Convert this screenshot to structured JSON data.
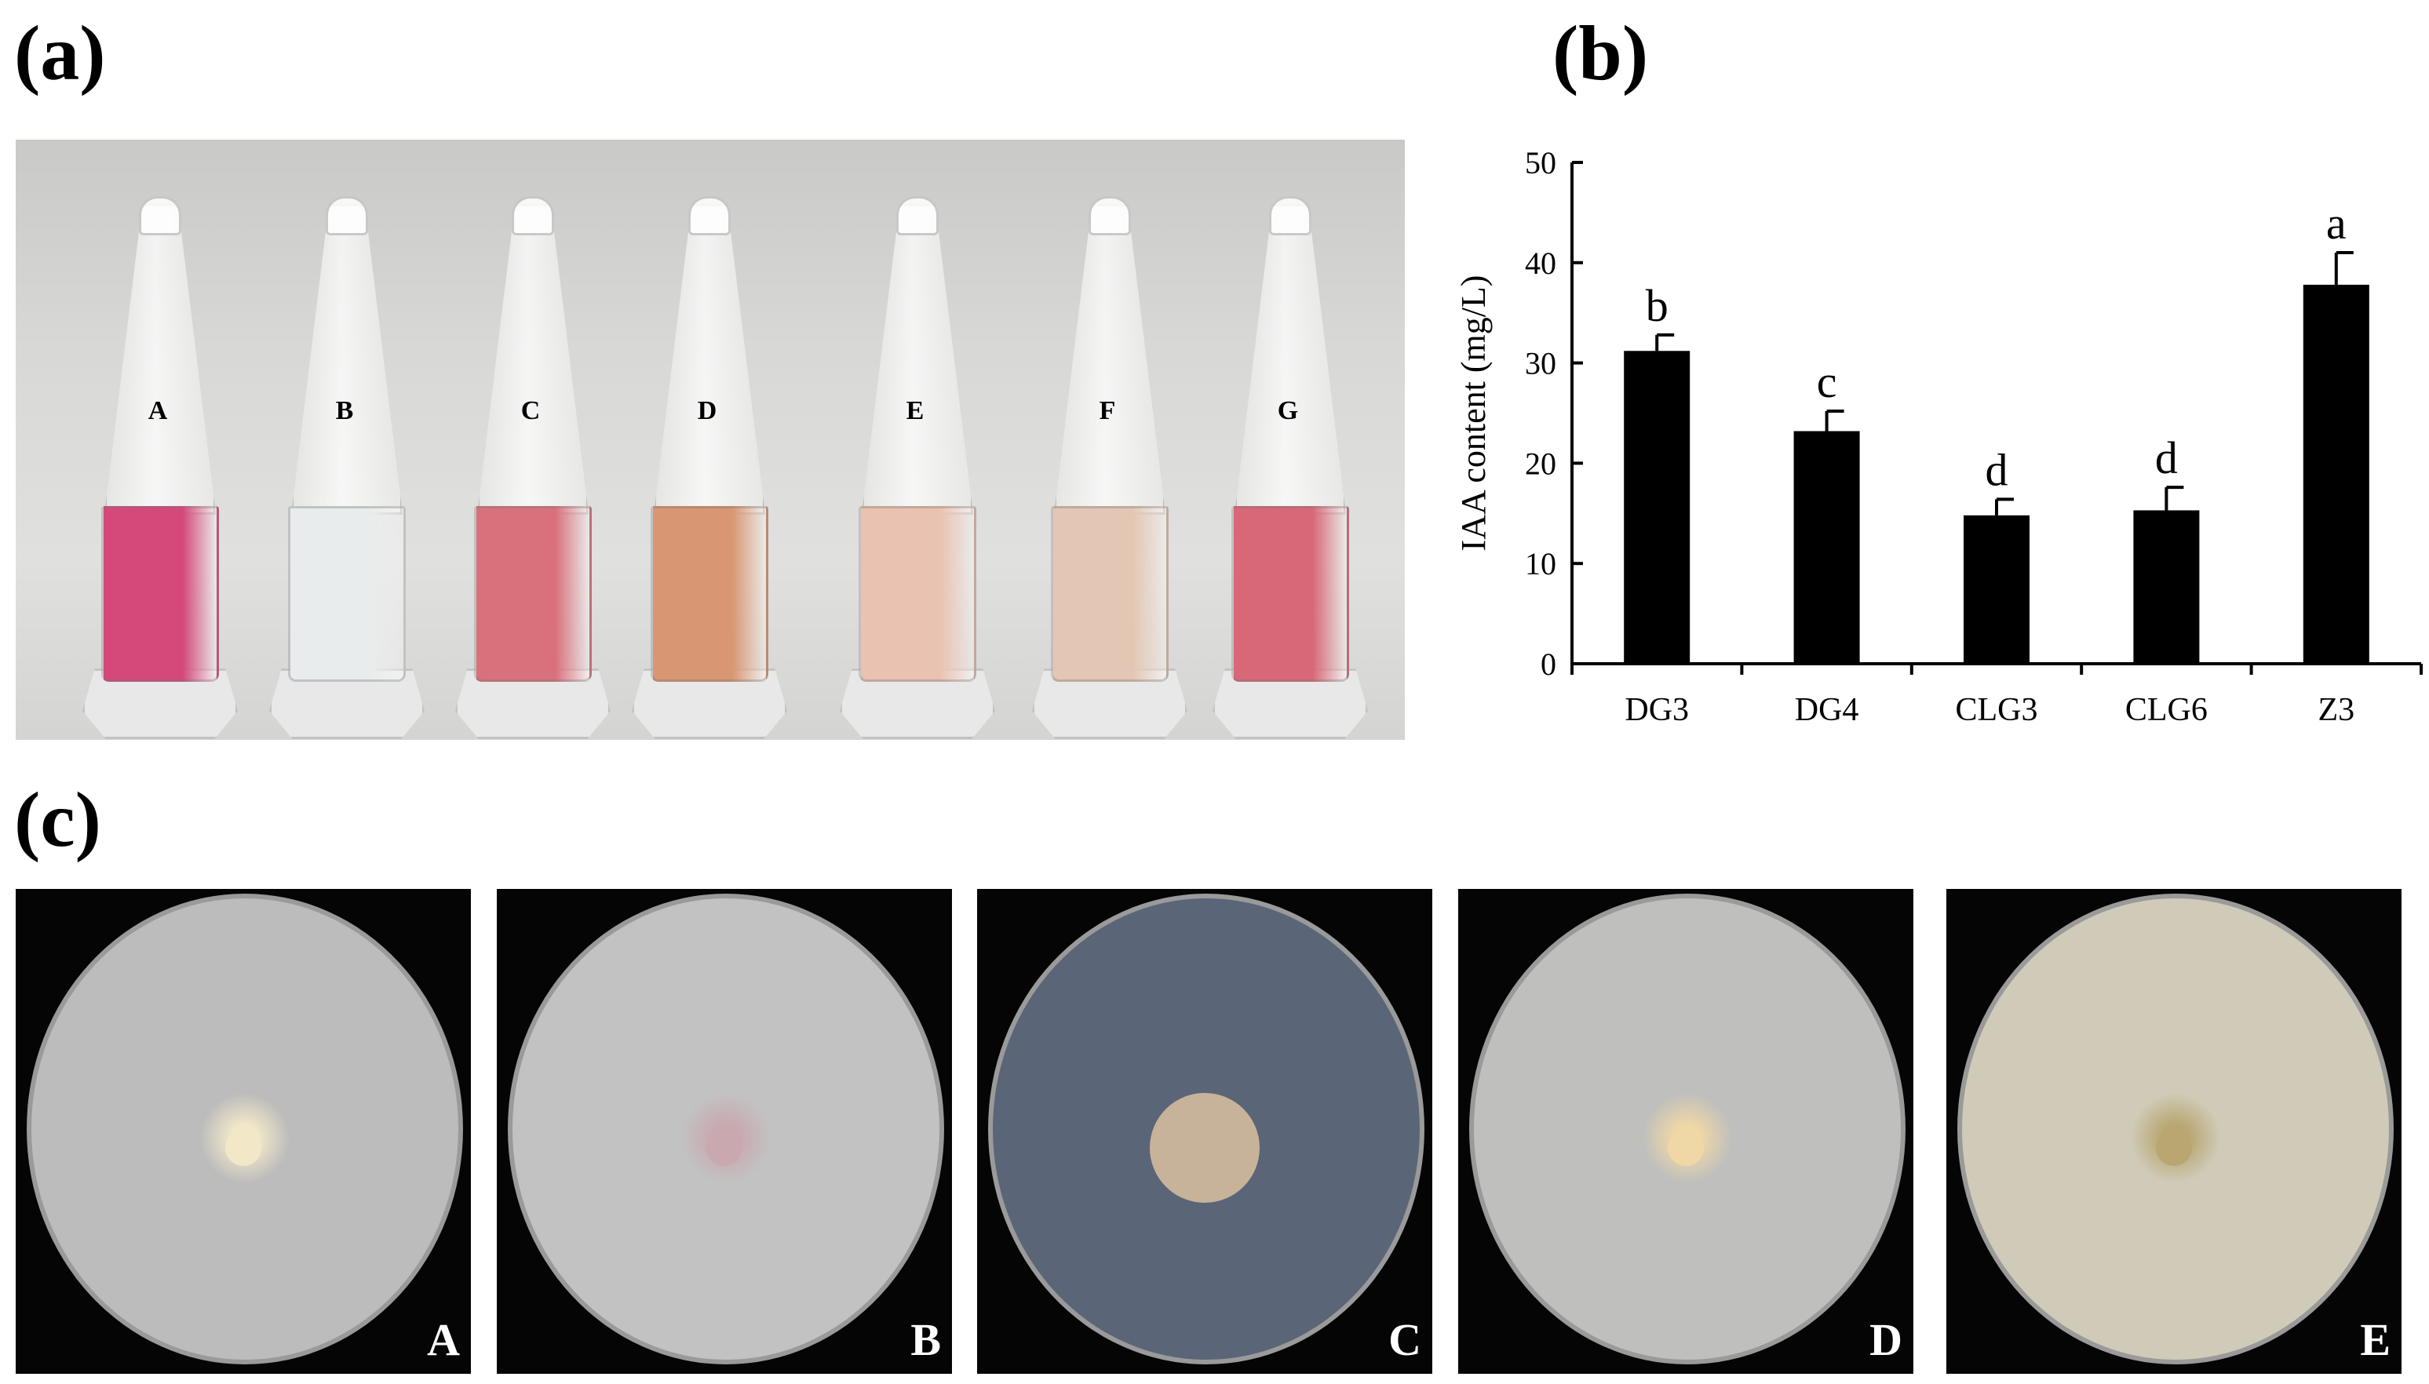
{
  "panels": {
    "a": "(a)",
    "b": "(b)",
    "c": "(c)"
  },
  "tubes": [
    {
      "label": "A",
      "color": "#d4487a"
    },
    {
      "label": "B",
      "color": "#e9ecec"
    },
    {
      "label": "C",
      "color": "#d9717c"
    },
    {
      "label": "D",
      "color": "#d89672"
    },
    {
      "label": "E",
      "color": "#e9c2b2"
    },
    {
      "label": "F",
      "color": "#e3c6b3"
    },
    {
      "label": "G",
      "color": "#d86878"
    }
  ],
  "chart_data": {
    "type": "bar",
    "categories": [
      "DG3",
      "DG4",
      "CLG3",
      "CLG6",
      "Z3"
    ],
    "values": [
      31.2,
      23.2,
      14.8,
      15.3,
      37.8
    ],
    "errors": [
      1.6,
      2.0,
      1.6,
      2.3,
      3.2
    ],
    "significance": [
      "b",
      "c",
      "d",
      "d",
      "a"
    ],
    "ylabel": "IAA content (mg/L)",
    "xlabel": "",
    "title": "",
    "ylim": [
      0,
      50
    ],
    "yticks": [
      0,
      10,
      20,
      30,
      40,
      50
    ],
    "bar_color": "#000000",
    "grid": false,
    "legend": "none"
  },
  "plates": [
    {
      "label": "A",
      "background": "#bcbcbc",
      "center": "#f2e8c8"
    },
    {
      "label": "B",
      "background": "#c2c2c2",
      "center": "#c9a8b0"
    },
    {
      "label": "C",
      "background": "#5b6578",
      "center": "#c7b39a"
    },
    {
      "label": "D",
      "background": "#bfbfbd",
      "center": "#f0d7a6"
    },
    {
      "label": "E",
      "background": "#cfcbb8",
      "center": "#b9a670"
    }
  ]
}
